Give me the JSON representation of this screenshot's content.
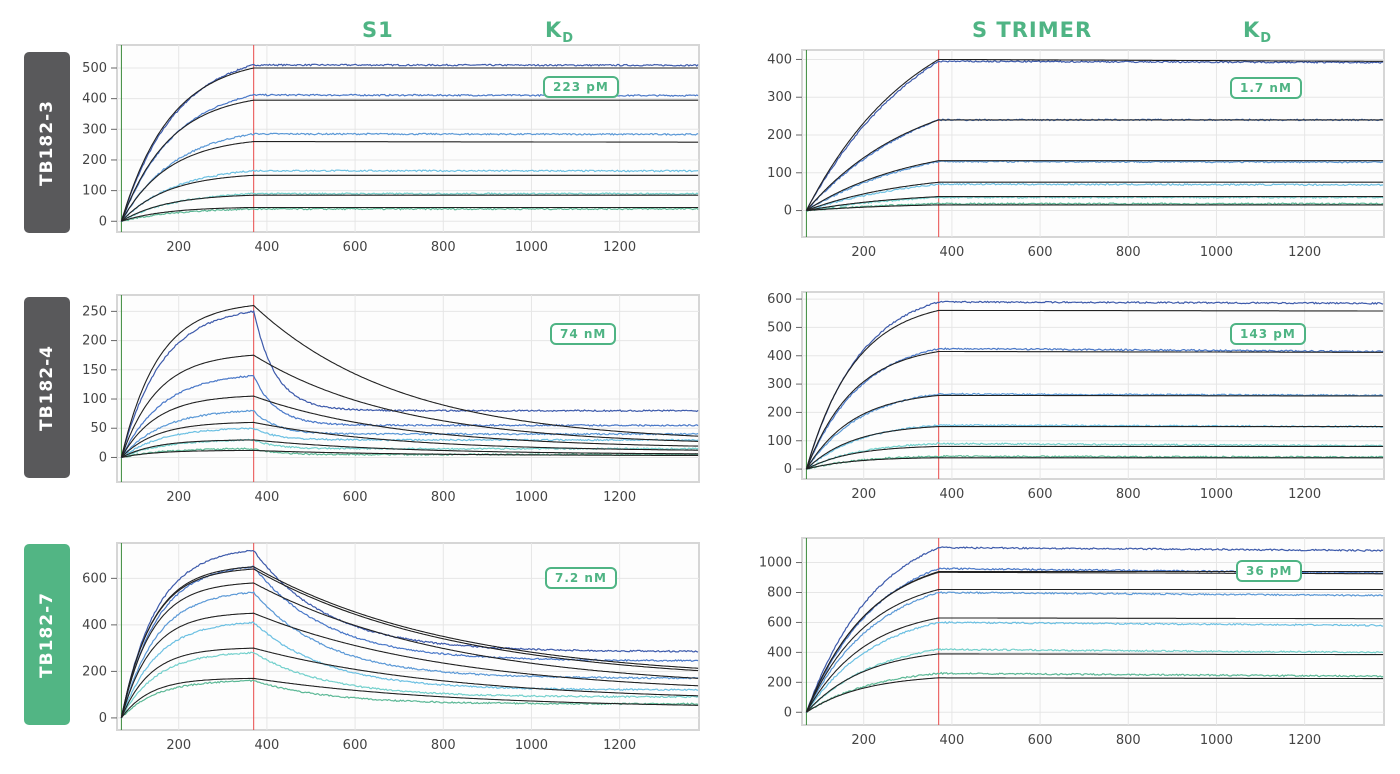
{
  "headers": {
    "left": "S1",
    "right": "S TRIMER",
    "kd": "K",
    "kd_sub": "D"
  },
  "rows": [
    "TB182-3",
    "TB182-4",
    "TB182-7"
  ],
  "colors": {
    "accent": "#4fb484",
    "row_gray": "#59595b",
    "series": [
      "#3d5aab",
      "#4a78c8",
      "#5a98d6",
      "#6cc0e2",
      "#73d0cc",
      "#5cb896"
    ],
    "fit": "#222222",
    "assoc_marker": "#3a8a3a",
    "diss_marker": "#e84a4a"
  },
  "chart_data": [
    {
      "type": "line",
      "analyte": "S1",
      "antibody": "TB182-3",
      "kd_label": "223 pM",
      "xlim": [
        60,
        1380
      ],
      "ylim": [
        -35,
        575
      ],
      "xticks": [
        200,
        400,
        600,
        800,
        1000,
        1200
      ],
      "yticks": [
        0,
        100,
        200,
        300,
        400,
        500
      ],
      "assoc_start": 70,
      "diss_start": 370,
      "ka": 0.009,
      "kd_data": 0.0001,
      "kd_fit": 0.0,
      "series": [
        {
          "peak": 510,
          "end": 498,
          "fit_peak": 500,
          "fit_end": 500
        },
        {
          "peak": 412,
          "end": 392,
          "fit_peak": 395,
          "fit_end": 395
        },
        {
          "peak": 285,
          "end": 270,
          "fit_peak": 260,
          "fit_end": 258
        },
        {
          "peak": 165,
          "end": 155,
          "fit_peak": 150,
          "fit_end": 150
        },
        {
          "peak": 90,
          "end": 88,
          "fit_peak": 85,
          "fit_end": 85
        },
        {
          "peak": 40,
          "end": 45,
          "fit_peak": 45,
          "fit_end": 45
        }
      ]
    },
    {
      "type": "line",
      "analyte": "S TRIMER",
      "antibody": "TB182-3",
      "kd_label": "1.7 nM",
      "xlim": [
        60,
        1380
      ],
      "ylim": [
        -70,
        425
      ],
      "xticks": [
        200,
        400,
        600,
        800,
        1000,
        1200
      ],
      "yticks": [
        0,
        100,
        200,
        300,
        400
      ],
      "assoc_start": 70,
      "diss_start": 370,
      "ka": 0.004,
      "kd_data": 0.0,
      "kd_fit": 0.0,
      "series": [
        {
          "peak": 395,
          "end": 392,
          "fit_peak": 400,
          "fit_end": 395
        },
        {
          "peak": 240,
          "end": 240,
          "fit_peak": 240,
          "fit_end": 240
        },
        {
          "peak": 130,
          "end": 128,
          "fit_peak": 132,
          "fit_end": 132
        },
        {
          "peak": 70,
          "end": 68,
          "fit_peak": 75,
          "fit_end": 75
        },
        {
          "peak": 35,
          "end": 35,
          "fit_peak": 37,
          "fit_end": 37
        },
        {
          "peak": 18,
          "end": 18,
          "fit_peak": 15,
          "fit_end": 15
        }
      ]
    },
    {
      "type": "line",
      "analyte": "S1",
      "antibody": "TB182-4",
      "kd_label": "74 nM",
      "xlim": [
        60,
        1380
      ],
      "ylim": [
        -42,
        278
      ],
      "xticks": [
        200,
        400,
        600,
        800,
        1000,
        1200
      ],
      "yticks": [
        0,
        50,
        100,
        150,
        200,
        250
      ],
      "assoc_start": 70,
      "diss_start": 370,
      "ka": 0.012,
      "kd_data": 0.02,
      "kd_fit": 0.003,
      "series": [
        {
          "peak": 250,
          "end": 80,
          "fit_peak": 260,
          "fit_end": 25
        },
        {
          "peak": 140,
          "end": 55,
          "fit_peak": 175,
          "fit_end": 20
        },
        {
          "peak": 80,
          "end": 40,
          "fit_peak": 105,
          "fit_end": 15
        },
        {
          "peak": 50,
          "end": 30,
          "fit_peak": 60,
          "fit_end": 10
        },
        {
          "peak": 30,
          "end": 15,
          "fit_peak": 30,
          "fit_end": 5
        },
        {
          "peak": 15,
          "end": 5,
          "fit_peak": 12,
          "fit_end": 3
        }
      ]
    },
    {
      "type": "line",
      "analyte": "S TRIMER",
      "antibody": "TB182-4",
      "kd_label": "143 pM",
      "xlim": [
        60,
        1380
      ],
      "ylim": [
        -35,
        625
      ],
      "xticks": [
        200,
        400,
        600,
        800,
        1000,
        1200
      ],
      "yticks": [
        0,
        100,
        200,
        300,
        400,
        500,
        600
      ],
      "assoc_start": 70,
      "diss_start": 370,
      "ka": 0.009,
      "kd_data": 0.0,
      "kd_fit": 0.0,
      "series": [
        {
          "peak": 590,
          "end": 585,
          "fit_peak": 560,
          "fit_end": 558
        },
        {
          "peak": 425,
          "end": 415,
          "fit_peak": 415,
          "fit_end": 412
        },
        {
          "peak": 265,
          "end": 260,
          "fit_peak": 260,
          "fit_end": 258
        },
        {
          "peak": 155,
          "end": 150,
          "fit_peak": 150,
          "fit_end": 150
        },
        {
          "peak": 90,
          "end": 82,
          "fit_peak": 80,
          "fit_end": 80
        },
        {
          "peak": 45,
          "end": 42,
          "fit_peak": 40,
          "fit_end": 40
        }
      ]
    },
    {
      "type": "line",
      "analyte": "S1",
      "antibody": "TB182-7",
      "kd_label": "7.2 nM",
      "xlim": [
        60,
        1380
      ],
      "ylim": [
        -52,
        752
      ],
      "xticks": [
        200,
        400,
        600,
        800,
        1000,
        1200
      ],
      "yticks": [
        0,
        200,
        400,
        600
      ],
      "assoc_start": 70,
      "diss_start": 370,
      "ka": 0.014,
      "kd_data": 0.006,
      "kd_fit": 0.0022,
      "series": [
        {
          "peak": 720,
          "end": 285,
          "fit_peak": 650,
          "fit_end": 160
        },
        {
          "peak": 650,
          "end": 245,
          "fit_peak": 640,
          "fit_end": 150
        },
        {
          "peak": 540,
          "end": 170,
          "fit_peak": 580,
          "fit_end": 120
        },
        {
          "peak": 410,
          "end": 120,
          "fit_peak": 450,
          "fit_end": 100
        },
        {
          "peak": 280,
          "end": 90,
          "fit_peak": 300,
          "fit_end": 70
        },
        {
          "peak": 160,
          "end": 60,
          "fit_peak": 170,
          "fit_end": 40
        }
      ]
    },
    {
      "type": "line",
      "analyte": "S TRIMER",
      "antibody": "TB182-7",
      "kd_label": "36 pM",
      "xlim": [
        60,
        1380
      ],
      "ylim": [
        -85,
        1164
      ],
      "xticks": [
        200,
        400,
        600,
        800,
        1000,
        1200
      ],
      "yticks": [
        0,
        200,
        400,
        600,
        800,
        1000
      ],
      "assoc_start": 70,
      "diss_start": 370,
      "ka": 0.007,
      "kd_data": 0.0,
      "kd_fit": 0.0,
      "series": [
        {
          "peak": 1100,
          "end": 1080,
          "fit_peak": 940,
          "fit_end": 940
        },
        {
          "peak": 960,
          "end": 930,
          "fit_peak": 935,
          "fit_end": 925
        },
        {
          "peak": 800,
          "end": 780,
          "fit_peak": 820,
          "fit_end": 820
        },
        {
          "peak": 600,
          "end": 580,
          "fit_peak": 630,
          "fit_end": 625
        },
        {
          "peak": 420,
          "end": 400,
          "fit_peak": 390,
          "fit_end": 385
        },
        {
          "peak": 260,
          "end": 240,
          "fit_peak": 230,
          "fit_end": 225
        }
      ]
    }
  ]
}
